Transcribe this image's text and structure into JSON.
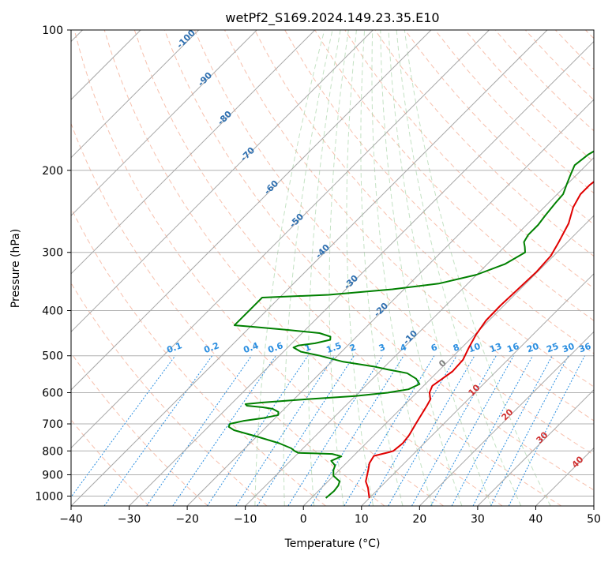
{
  "chart_data": {
    "type": "line",
    "title": "wetPf2_S169.2024.149.23.35.E10",
    "xlabel": "Temperature (°C)",
    "ylabel": "Pressure (hPa)",
    "xlim": [
      -40,
      50
    ],
    "ylim": [
      1050,
      100
    ],
    "y_scale": "log",
    "x_ticks": [
      -40,
      -30,
      -20,
      -10,
      0,
      10,
      20,
      30,
      40,
      50
    ],
    "y_ticks": [
      100,
      200,
      300,
      400,
      500,
      600,
      700,
      800,
      900,
      1000
    ],
    "grid": true,
    "skew": "skew-T log-P diagram with isotherms, dry/moist adiabats and mixing ratio lines",
    "series": [
      {
        "color": "#e00000",
        "points": [
          [
            10,
            1010
          ],
          [
            8,
            960
          ],
          [
            6.5,
            930
          ],
          [
            5,
            880
          ],
          [
            4,
            850
          ],
          [
            3.5,
            820
          ],
          [
            5.5,
            805
          ],
          [
            6,
            800
          ],
          [
            6.3,
            770
          ],
          [
            6,
            740
          ],
          [
            5.2,
            700
          ],
          [
            4.5,
            665
          ],
          [
            4,
            640
          ],
          [
            3.5,
            620
          ],
          [
            2.2,
            600
          ],
          [
            1.5,
            580
          ],
          [
            2,
            560
          ],
          [
            2.5,
            540
          ],
          [
            2.3,
            510
          ],
          [
            1.2,
            480
          ],
          [
            0.2,
            450
          ],
          [
            -0.5,
            420
          ],
          [
            -0.6,
            390
          ],
          [
            -0.4,
            360
          ],
          [
            -0.2,
            330
          ],
          [
            -0.5,
            305
          ],
          [
            -1.5,
            285
          ],
          [
            -3,
            260
          ],
          [
            -5,
            240
          ],
          [
            -6,
            225
          ],
          [
            -6,
            215
          ],
          [
            -5.5,
            205
          ],
          [
            -5,
            200
          ],
          [
            -3,
            190
          ],
          [
            -1,
            185
          ],
          [
            2,
            178
          ],
          [
            4.5,
            170
          ],
          [
            5.5,
            163
          ],
          [
            8,
            147
          ],
          [
            11,
            133
          ],
          [
            13,
            127
          ],
          [
            16,
            120
          ],
          [
            17.5,
            115
          ],
          [
            19,
            110
          ],
          [
            20,
            106
          ],
          [
            21,
            102
          ],
          [
            21.5,
            100
          ]
        ]
      },
      {
        "color": "#008000",
        "points": [
          [
            2.5,
            1010
          ],
          [
            2.7,
            975
          ],
          [
            2.5,
            950
          ],
          [
            2,
            930
          ],
          [
            0,
            905
          ],
          [
            -1,
            880
          ],
          [
            -1.5,
            860
          ],
          [
            -3,
            840
          ],
          [
            -2,
            822
          ],
          [
            -4,
            812
          ],
          [
            -7,
            810
          ],
          [
            -10,
            808
          ],
          [
            -11,
            800
          ],
          [
            -12,
            790
          ],
          [
            -15,
            770
          ],
          [
            -20,
            745
          ],
          [
            -25,
            722
          ],
          [
            -26.5,
            710
          ],
          [
            -26.8,
            700
          ],
          [
            -25,
            690
          ],
          [
            -22,
            680
          ],
          [
            -20,
            670
          ],
          [
            -20.5,
            660
          ],
          [
            -22,
            650
          ],
          [
            -24,
            645
          ],
          [
            -27,
            640
          ],
          [
            -27.5,
            635
          ],
          [
            -25,
            630
          ],
          [
            -18,
            620
          ],
          [
            -10,
            610
          ],
          [
            -5,
            600
          ],
          [
            -2,
            590
          ],
          [
            -1,
            575
          ],
          [
            -2.5,
            560
          ],
          [
            -5,
            545
          ],
          [
            -9,
            535
          ],
          [
            -12,
            527
          ],
          [
            -18,
            515
          ],
          [
            -23,
            500
          ],
          [
            -27,
            490
          ],
          [
            -29,
            480
          ],
          [
            -28.5,
            475
          ],
          [
            -26,
            470
          ],
          [
            -24,
            462
          ],
          [
            -24.5,
            455
          ],
          [
            -27,
            447
          ],
          [
            -33,
            440
          ],
          [
            -40,
            433
          ],
          [
            -43,
            430
          ],
          [
            -43,
            375
          ],
          [
            -32,
            370
          ],
          [
            -22,
            360
          ],
          [
            -15,
            350
          ],
          [
            -10,
            335
          ],
          [
            -7,
            318
          ],
          [
            -5.5,
            300
          ],
          [
            -6.5,
            292
          ],
          [
            -7.5,
            285
          ],
          [
            -8,
            275
          ],
          [
            -8,
            262
          ],
          [
            -8.4,
            250
          ],
          [
            -8.8,
            235
          ],
          [
            -9,
            225
          ],
          [
            -10,
            215
          ],
          [
            -11,
            205
          ],
          [
            -12,
            195
          ],
          [
            -11.5,
            185
          ],
          [
            -10.5,
            178
          ],
          [
            -11,
            170
          ],
          [
            -10.5,
            165
          ],
          [
            -9,
            160
          ],
          [
            -6,
            155
          ],
          [
            -4,
            150
          ],
          [
            -3,
            145
          ],
          [
            -1.5,
            135
          ],
          [
            -0.5,
            126
          ],
          [
            1,
            119
          ],
          [
            2,
            115
          ],
          [
            3.5,
            110
          ],
          [
            4,
            105
          ],
          [
            4.5,
            102
          ],
          [
            5,
            100
          ]
        ]
      }
    ],
    "annotations": {
      "isotherm_labels": [
        "-100",
        "-90",
        "-80",
        "-70",
        "-60",
        "-50",
        "-40",
        "-30",
        "-20",
        "-10"
      ],
      "mixing_ratio_labels": [
        "0.1",
        "0.2",
        "0.4",
        "0.6",
        "1",
        "1.5",
        "2",
        "3",
        "4",
        "6",
        "8",
        "10",
        "13",
        "16",
        "20",
        "25",
        "30",
        "36"
      ],
      "moist_adiabat_labels": [
        "0",
        "10",
        "20",
        "30",
        "40"
      ]
    },
    "colors": {
      "temperature": "#e00000",
      "dewpoint": "#008000",
      "isotherm_label": "#2e6fb0",
      "mixing_ratio": "#2a8ee0",
      "moist_label": "#d03030",
      "zero_label": "#808080"
    }
  }
}
